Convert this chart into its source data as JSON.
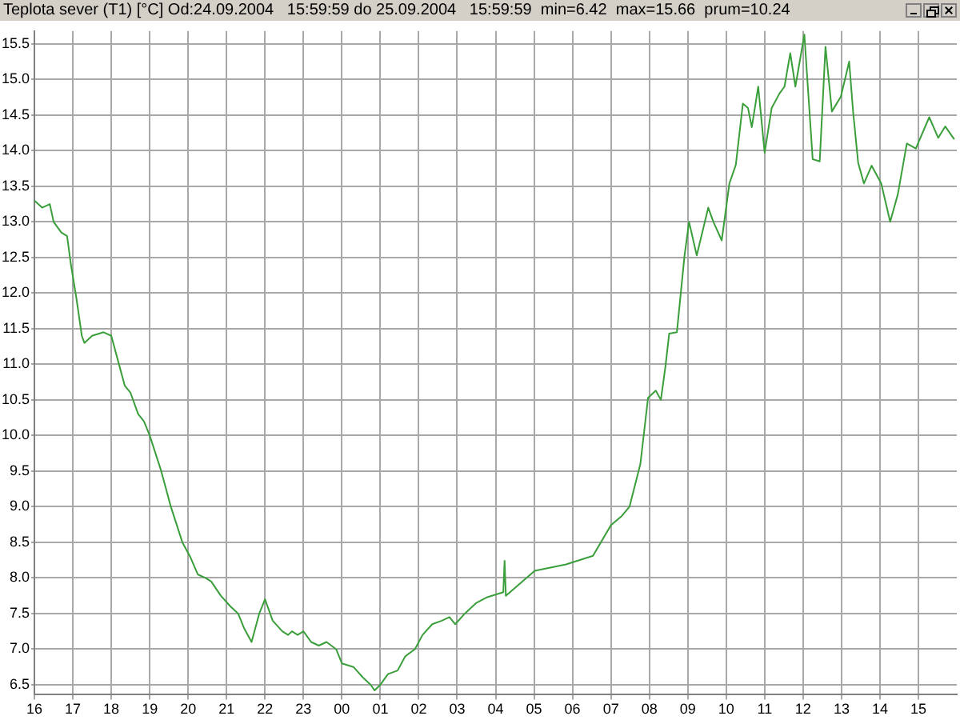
{
  "chart_data": {
    "type": "line",
    "title": "Teplota sever (T1) [°C] Od:24.09.2004   15:59:59 do 25.09.2004   15:59:59  min=6.42  max=15.66  prum=10.24",
    "series": [
      {
        "color": "#3a9e3a",
        "x": [
          "2004-09-24T16:00",
          "2004-09-24T16:12",
          "2004-09-24T16:24",
          "2004-09-24T16:30",
          "2004-09-24T16:42",
          "2004-09-24T16:51",
          "2004-09-24T16:57",
          "2004-09-24T17:06",
          "2004-09-24T17:14",
          "2004-09-24T17:18",
          "2004-09-24T17:30",
          "2004-09-24T17:48",
          "2004-09-24T18:00",
          "2004-09-24T18:12",
          "2004-09-24T18:21",
          "2004-09-24T18:30",
          "2004-09-24T18:42",
          "2004-09-24T18:51",
          "2004-09-24T19:00",
          "2004-09-24T19:18",
          "2004-09-24T19:33",
          "2004-09-24T19:51",
          "2004-09-24T20:03",
          "2004-09-24T20:15",
          "2004-09-24T20:27",
          "2004-09-24T20:36",
          "2004-09-24T20:51",
          "2004-09-24T21:06",
          "2004-09-24T21:18",
          "2004-09-24T21:27",
          "2004-09-24T21:39",
          "2004-09-24T21:51",
          "2004-09-24T22:00",
          "2004-09-24T22:12",
          "2004-09-24T22:27",
          "2004-09-24T22:36",
          "2004-09-24T22:42",
          "2004-09-24T22:51",
          "2004-09-24T23:00",
          "2004-09-24T23:12",
          "2004-09-24T23:24",
          "2004-09-24T23:36",
          "2004-09-24T23:51",
          "2004-09-25T00:00",
          "2004-09-25T00:18",
          "2004-09-25T00:33",
          "2004-09-25T00:45",
          "2004-09-25T00:51",
          "2004-09-25T01:00",
          "2004-09-25T01:12",
          "2004-09-25T01:27",
          "2004-09-25T01:39",
          "2004-09-25T01:54",
          "2004-09-25T02:06",
          "2004-09-25T02:21",
          "2004-09-25T02:36",
          "2004-09-25T02:48",
          "2004-09-25T02:57",
          "2004-09-25T03:12",
          "2004-09-25T03:30",
          "2004-09-25T03:47",
          "2004-09-25T04:12",
          "2004-09-25T04:14",
          "2004-09-25T04:16",
          "2004-09-25T05:01",
          "2004-09-25T05:50",
          "2004-09-25T06:32",
          "2004-09-25T07:00",
          "2004-09-25T07:17",
          "2004-09-25T07:29",
          "2004-09-25T07:46",
          "2004-09-25T07:58",
          "2004-09-25T08:10",
          "2004-09-25T08:18",
          "2004-09-25T08:25",
          "2004-09-25T08:31",
          "2004-09-25T08:43",
          "2004-09-25T08:55",
          "2004-09-25T09:02",
          "2004-09-25T09:14",
          "2004-09-25T09:32",
          "2004-09-25T09:40",
          "2004-09-25T09:53",
          "2004-09-25T10:05",
          "2004-09-25T10:15",
          "2004-09-25T10:26",
          "2004-09-25T10:34",
          "2004-09-25T10:40",
          "2004-09-25T10:50",
          "2004-09-25T11:00",
          "2004-09-25T11:11",
          "2004-09-25T11:23",
          "2004-09-25T11:31",
          "2004-09-25T11:40",
          "2004-09-25T11:48",
          "2004-09-25T12:02",
          "2004-09-25T12:15",
          "2004-09-25T12:26",
          "2004-09-25T12:35",
          "2004-09-25T12:45",
          "2004-09-25T12:59",
          "2004-09-25T13:12",
          "2004-09-25T13:18",
          "2004-09-25T13:26",
          "2004-09-25T13:35",
          "2004-09-25T13:47",
          "2004-09-25T14:02",
          "2004-09-25T14:16",
          "2004-09-25T14:28",
          "2004-09-25T14:42",
          "2004-09-25T14:56",
          "2004-09-25T15:17",
          "2004-09-25T15:31",
          "2004-09-25T15:42",
          "2004-09-25T15:56"
        ],
        "values": [
          13.3,
          13.2,
          13.25,
          13.0,
          12.85,
          12.8,
          12.4,
          11.9,
          11.4,
          11.3,
          11.4,
          11.45,
          11.4,
          11.0,
          10.7,
          10.6,
          10.3,
          10.2,
          10.0,
          9.5,
          9.0,
          8.5,
          8.3,
          8.05,
          8.0,
          7.95,
          7.75,
          7.6,
          7.5,
          7.3,
          7.1,
          7.5,
          7.7,
          7.4,
          7.25,
          7.2,
          7.25,
          7.2,
          7.25,
          7.1,
          7.05,
          7.1,
          7.0,
          6.8,
          6.75,
          6.6,
          6.5,
          6.42,
          6.5,
          6.65,
          6.7,
          6.9,
          7.0,
          7.2,
          7.35,
          7.4,
          7.45,
          7.35,
          7.5,
          7.65,
          7.73,
          7.8,
          8.24,
          7.75,
          8.1,
          8.19,
          8.31,
          8.74,
          8.87,
          9.0,
          9.6,
          10.53,
          10.63,
          10.5,
          10.96,
          11.43,
          11.45,
          12.53,
          13.0,
          12.53,
          13.2,
          13.0,
          12.74,
          13.54,
          13.8,
          14.66,
          14.6,
          14.33,
          14.9,
          13.97,
          14.6,
          14.8,
          14.9,
          15.37,
          14.9,
          15.63,
          13.88,
          13.85,
          15.46,
          14.55,
          14.76,
          15.25,
          14.56,
          13.83,
          13.54,
          13.79,
          13.54,
          13.0,
          13.39,
          14.1,
          14.03,
          14.47,
          14.18,
          14.34,
          14.16
        ]
      }
    ],
    "xlim": [
      "2004-09-24T16:00",
      "2004-09-25T16:00"
    ],
    "xticks": [
      {
        "value": "2004-09-24T16:00",
        "label": "16"
      },
      {
        "value": "2004-09-24T17:00",
        "label": "17"
      },
      {
        "value": "2004-09-24T18:00",
        "label": "18"
      },
      {
        "value": "2004-09-24T19:00",
        "label": "19"
      },
      {
        "value": "2004-09-24T20:00",
        "label": "20"
      },
      {
        "value": "2004-09-24T21:00",
        "label": "21"
      },
      {
        "value": "2004-09-24T22:00",
        "label": "22"
      },
      {
        "value": "2004-09-24T23:00",
        "label": "23"
      },
      {
        "value": "2004-09-25T00:00",
        "label": "00"
      },
      {
        "value": "2004-09-25T01:00",
        "label": "01"
      },
      {
        "value": "2004-09-25T02:00",
        "label": "02"
      },
      {
        "value": "2004-09-25T03:00",
        "label": "03"
      },
      {
        "value": "2004-09-25T04:00",
        "label": "04"
      },
      {
        "value": "2004-09-25T05:00",
        "label": "05"
      },
      {
        "value": "2004-09-25T06:00",
        "label": "06"
      },
      {
        "value": "2004-09-25T07:00",
        "label": "07"
      },
      {
        "value": "2004-09-25T08:00",
        "label": "08"
      },
      {
        "value": "2004-09-25T09:00",
        "label": "09"
      },
      {
        "value": "2004-09-25T10:00",
        "label": "10"
      },
      {
        "value": "2004-09-25T11:00",
        "label": "11"
      },
      {
        "value": "2004-09-25T12:00",
        "label": "12"
      },
      {
        "value": "2004-09-25T13:00",
        "label": "13"
      },
      {
        "value": "2004-09-25T14:00",
        "label": "14"
      },
      {
        "value": "2004-09-25T15:00",
        "label": "15"
      }
    ],
    "ylim": [
      6.36,
      15.68
    ],
    "yticks": [
      {
        "value": 6.5,
        "label": "6.5"
      },
      {
        "value": 7,
        "label": "7.0"
      },
      {
        "value": 7.5,
        "label": "7.5"
      },
      {
        "value": 8,
        "label": "8.0"
      },
      {
        "value": 8.5,
        "label": "8.5"
      },
      {
        "value": 9,
        "label": "9.0"
      },
      {
        "value": 9.5,
        "label": "9.5"
      },
      {
        "value": 10,
        "label": "10.0"
      },
      {
        "value": 10.5,
        "label": "10.5"
      },
      {
        "value": 11,
        "label": "11.0"
      },
      {
        "value": 11.5,
        "label": "11.5"
      },
      {
        "value": 12,
        "label": "12.0"
      },
      {
        "value": 12.5,
        "label": "12.5"
      },
      {
        "value": 13,
        "label": "13.0"
      },
      {
        "value": 13.5,
        "label": "13.5"
      },
      {
        "value": 14,
        "label": "14.0"
      },
      {
        "value": 14.5,
        "label": "14.5"
      },
      {
        "value": 15,
        "label": "15.0"
      },
      {
        "value": 15.5,
        "label": "15.5"
      }
    ],
    "grid": true,
    "legend": false,
    "marker": "none",
    "line_style": "solid"
  }
}
